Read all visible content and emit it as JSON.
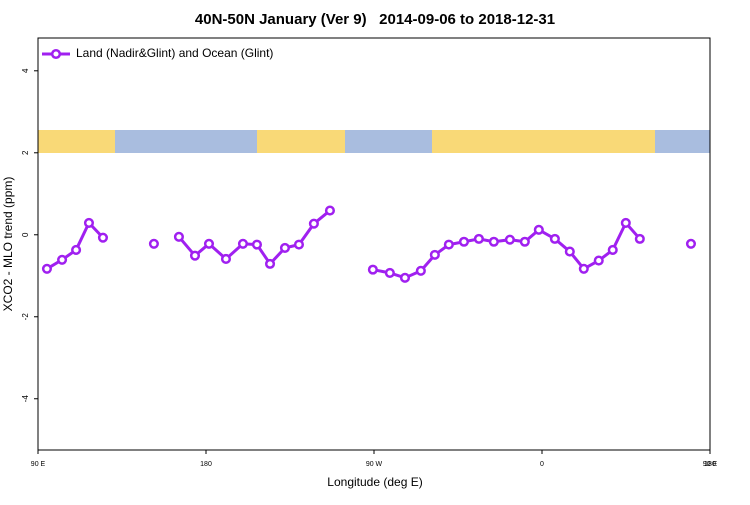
{
  "chart_data": {
    "type": "line",
    "title": "40N-50N January (Ver 9)   2014-09-06 to 2018-12-31",
    "x_label": "Longitude (deg E)",
    "y_label": "XCO2 - MLO trend (ppm)",
    "xlim": [
      90,
      450
    ],
    "xticks": [
      {
        "value": 90,
        "label": "90 E"
      },
      180,
      {
        "value": 270,
        "label": "90 W"
      },
      {
        "value": 360,
        "label": "0"
      },
      {
        "value": 450,
        "label": "90 E"
      },
      {
        "value": 540,
        "label": "180"
      }
    ],
    "ylim": [
      -5.25,
      4.8
    ],
    "yticks": [
      -4,
      -2,
      0,
      2,
      4
    ],
    "grid": false,
    "legend": "top-left",
    "series": [
      {
        "name": "Land (Nadir&Glint) and Ocean (Glint)",
        "color": "#a020f0",
        "x": [
          94.8,
          102.9,
          110.4,
          117.3,
          124.8,
          null,
          152.1,
          null,
          165.5,
          174.1,
          181.6,
          190.7,
          199.8,
          207.3,
          214.3,
          222.3,
          229.8,
          237.8,
          246.4,
          null,
          269.4,
          278.5,
          286.6,
          295.1,
          302.6,
          310.1,
          318.2,
          326.2,
          334.2,
          342.8,
          350.8,
          358.3,
          366.9,
          374.9,
          382.4,
          390.4,
          397.9,
          404.9,
          412.4,
          null,
          439.8
        ],
        "values": [
          -0.83,
          -0.61,
          -0.37,
          0.29,
          -0.07,
          null,
          -0.22,
          null,
          -0.05,
          -0.51,
          -0.22,
          -0.59,
          -0.22,
          -0.24,
          -0.71,
          -0.32,
          -0.24,
          0.27,
          0.59,
          null,
          -0.85,
          -0.93,
          -1.05,
          -0.88,
          -0.49,
          -0.24,
          -0.17,
          -0.1,
          -0.17,
          -0.12,
          -0.17,
          0.12,
          -0.1,
          -0.41,
          -0.83,
          -0.63,
          -0.37,
          0.29,
          -0.1,
          null,
          -0.22
        ]
      }
    ]
  }
}
